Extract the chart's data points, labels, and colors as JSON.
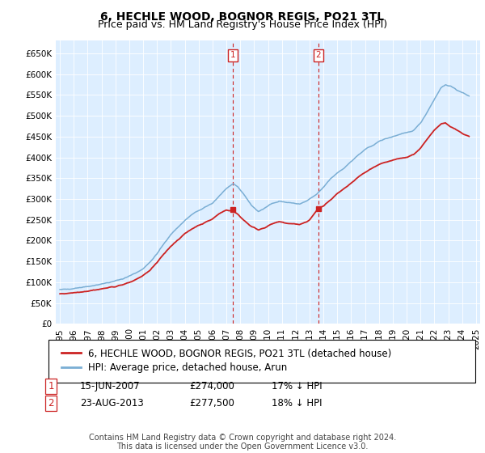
{
  "title": "6, HECHLE WOOD, BOGNOR REGIS, PO21 3TL",
  "subtitle": "Price paid vs. HM Land Registry's House Price Index (HPI)",
  "ylim": [
    0,
    680000
  ],
  "yticks": [
    0,
    50000,
    100000,
    150000,
    200000,
    250000,
    300000,
    350000,
    400000,
    450000,
    500000,
    550000,
    600000,
    650000
  ],
  "xlim_start": 1994.7,
  "xlim_end": 2025.3,
  "hpi_color": "#7aaed4",
  "price_color": "#cc2222",
  "annotation_color": "#cc2222",
  "bg_color": "#ddeeff",
  "legend_label_price": "6, HECHLE WOOD, BOGNOR REGIS, PO21 3TL (detached house)",
  "legend_label_hpi": "HPI: Average price, detached house, Arun",
  "sale1_date": "15-JUN-2007",
  "sale1_price": "£274,000",
  "sale1_hpi": "17% ↓ HPI",
  "sale1_year": 2007.45,
  "sale1_value": 274000,
  "sale2_date": "23-AUG-2013",
  "sale2_price": "£277,500",
  "sale2_hpi": "18% ↓ HPI",
  "sale2_year": 2013.64,
  "sale2_value": 277500,
  "footer": "Contains HM Land Registry data © Crown copyright and database right 2024.\nThis data is licensed under the Open Government Licence v3.0.",
  "title_fontsize": 10,
  "subtitle_fontsize": 9,
  "tick_fontsize": 7.5,
  "legend_fontsize": 8.5,
  "table_fontsize": 8.5,
  "footer_fontsize": 7
}
